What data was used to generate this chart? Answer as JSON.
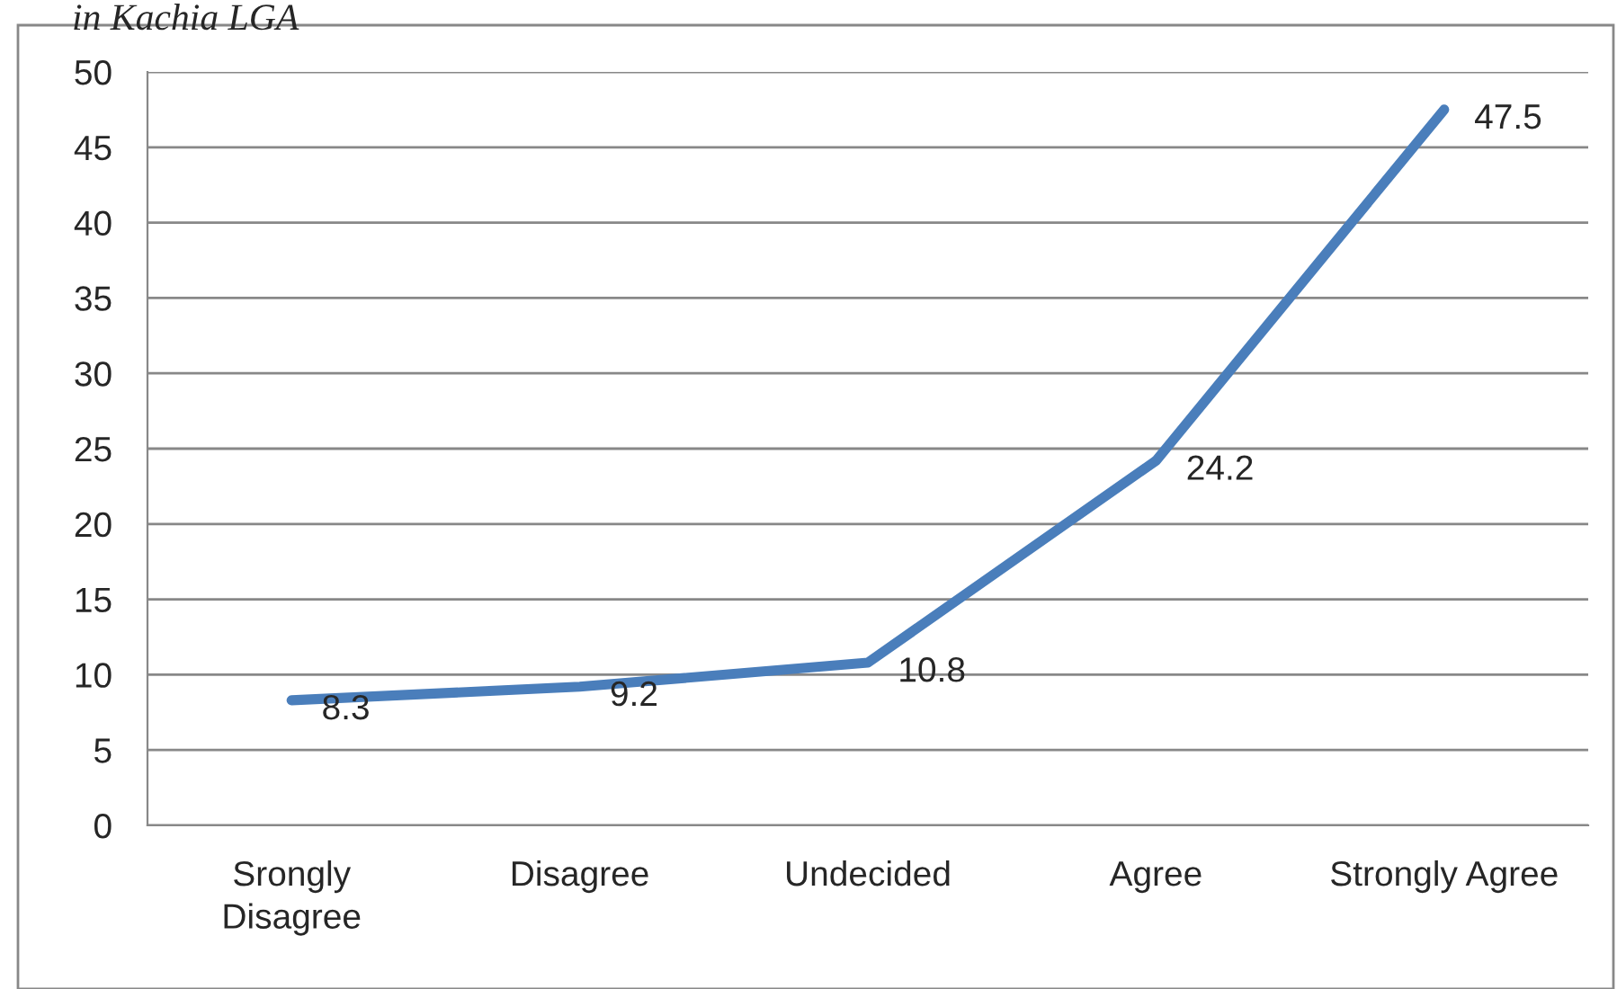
{
  "chart_data": {
    "type": "line",
    "title": "in Kachia LGA",
    "categories": [
      "Srongly\nDisagree",
      "Disagree",
      "Undecided",
      "Agree",
      "Strongly Agree"
    ],
    "series": [
      {
        "color": "#4a7ebb",
        "values": [
          8.3,
          9.2,
          10.8,
          24.2,
          47.5
        ]
      }
    ],
    "ylim": [
      0,
      50
    ],
    "yticks": [
      0,
      5,
      10,
      15,
      20,
      25,
      30,
      35,
      40,
      45,
      50
    ],
    "grid": "y",
    "data_labels": true,
    "marker": "none",
    "line_style": "solid",
    "legend": false
  }
}
